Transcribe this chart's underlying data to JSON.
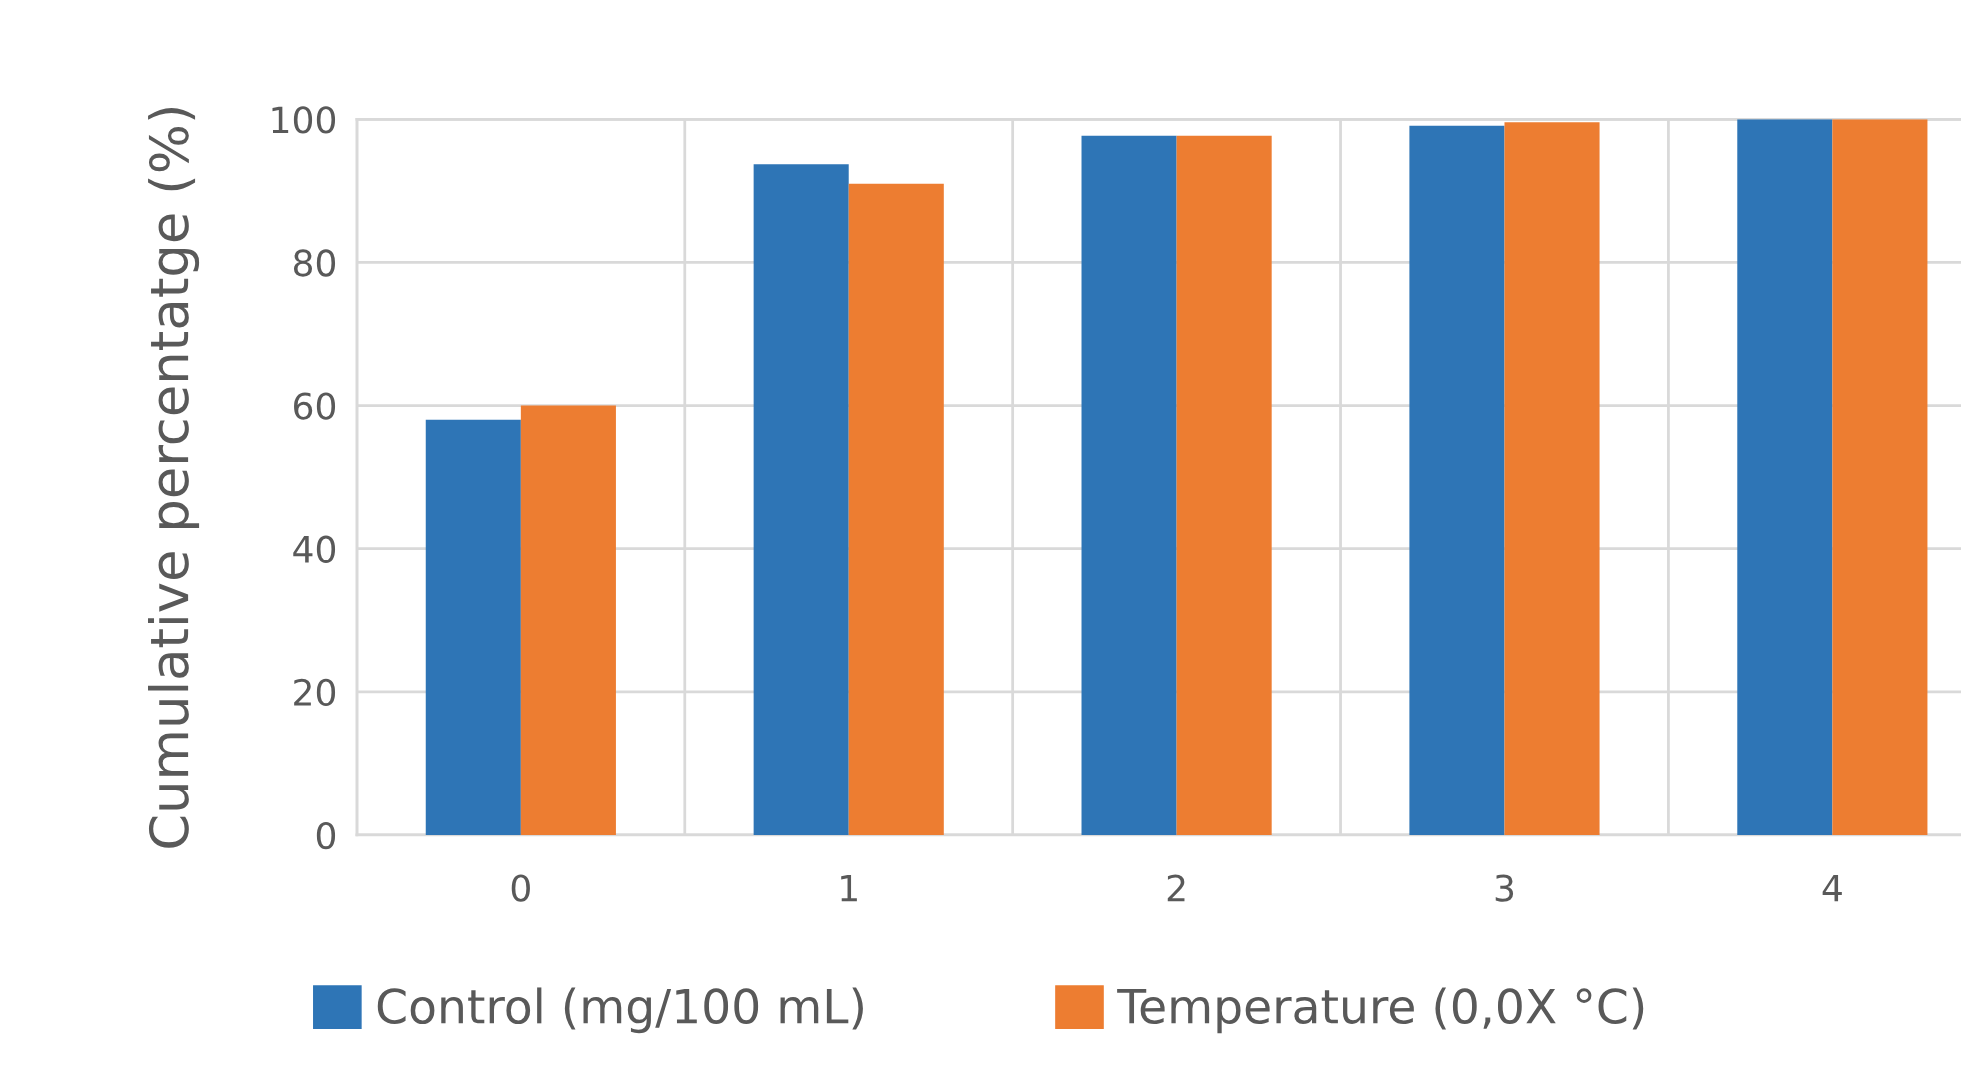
{
  "chart_data": {
    "type": "bar",
    "ylabel": "Cumulative percentatge (%)",
    "categories": [
      "0",
      "1",
      "2",
      "3",
      "4"
    ],
    "series": [
      {
        "name": "Control (mg/100 mL)",
        "color": "#2e75b6",
        "values": [
          58,
          93.7,
          97.7,
          99.1,
          100
        ]
      },
      {
        "name": "Temperature (0,0X °C)",
        "color": "#ed7d31",
        "values": [
          60,
          91,
          97.7,
          99.6,
          100
        ]
      }
    ],
    "ylim": [
      0,
      100
    ],
    "yticks": [
      0,
      20,
      40,
      60,
      80,
      100
    ],
    "grid": true,
    "legend": "bottom"
  }
}
